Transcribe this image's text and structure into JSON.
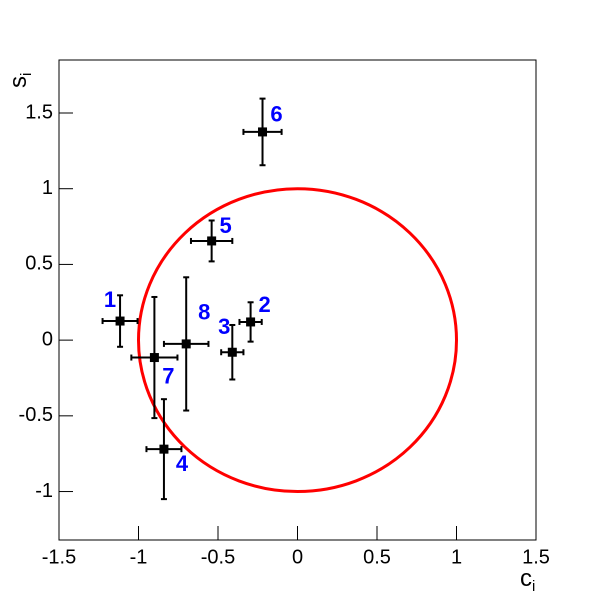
{
  "chart_data": {
    "type": "errorscatter",
    "xlabel": {
      "main": "c",
      "sub": "i"
    },
    "ylabel": {
      "main": "s",
      "sub": "i"
    },
    "xlim": [
      -1.5,
      1.5
    ],
    "ylim": [
      -1.32,
      1.85
    ],
    "xticks": [
      -1.5,
      -1,
      -0.5,
      0,
      0.5,
      1,
      1.5
    ],
    "yticks": [
      -1,
      -0.5,
      0,
      0.5,
      1,
      1.5
    ],
    "marker_color": "#000000",
    "label_color": "#0000ff",
    "circle": {
      "cx": 0,
      "cy": 0,
      "r": 1,
      "color": "#ff0000"
    },
    "points": {
      "labels": [
        "1",
        "2",
        "3",
        "4",
        "5",
        "6",
        "7",
        "8"
      ],
      "x": [
        -1.116,
        -0.295,
        -0.41,
        -0.84,
        -0.54,
        -0.22,
        -0.9,
        -0.7
      ],
      "y": [
        0.126,
        0.12,
        -0.08,
        -0.72,
        0.655,
        1.375,
        -0.115,
        -0.025
      ],
      "xerr": [
        0.11,
        0.07,
        0.07,
        0.11,
        0.13,
        0.12,
        0.145,
        0.14
      ],
      "yerr": [
        0.17,
        0.13,
        0.18,
        0.33,
        0.135,
        0.22,
        0.4,
        0.44
      ]
    }
  }
}
